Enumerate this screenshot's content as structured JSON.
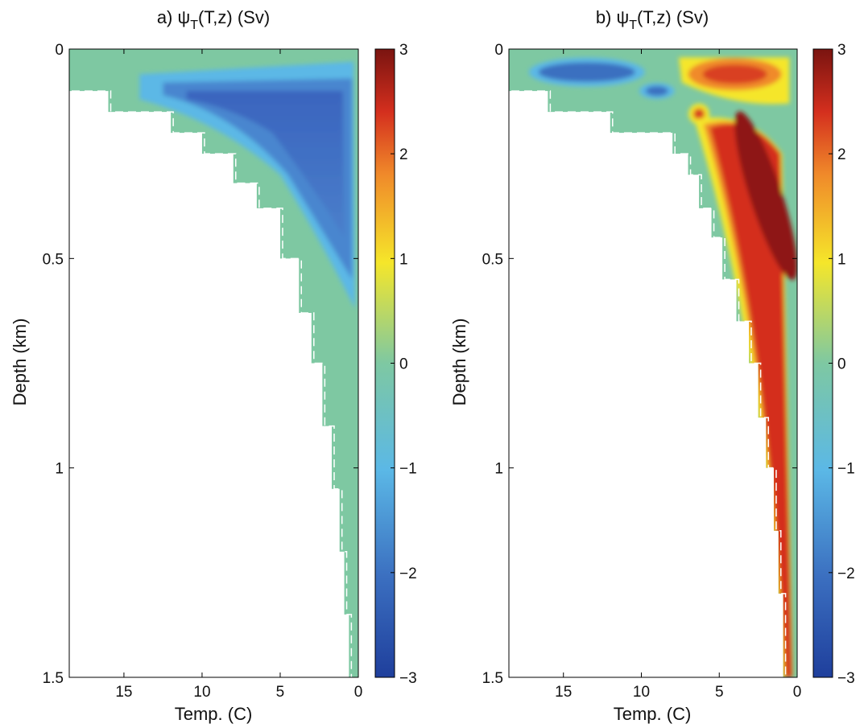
{
  "colors": {
    "background": "#ffffff",
    "frame": "#000000",
    "zero_contour": "#ffffff",
    "colormap": "jet",
    "colormap_stops": [
      "#1f3f9c",
      "#3b6fc0",
      "#5bb8e6",
      "#7ec8a2",
      "#f5e62a",
      "#f08a2a",
      "#d42f1e",
      "#7a1410"
    ]
  },
  "chart_data": [
    {
      "panel": "a",
      "type": "heatmap",
      "subtype": "filled-contour",
      "title_prefix": "a) ",
      "title_sym": "ψ",
      "title_sub": "T",
      "title_rest": "(T,z) (Sv)",
      "xlabel": "Temp. (C)",
      "ylabel": "Depth (km)",
      "x_reversed": true,
      "y_reversed": true,
      "xlim": [
        18.5,
        0
      ],
      "ylim": [
        0,
        1.5
      ],
      "xticks": [
        "15",
        "10",
        "5",
        "0"
      ],
      "xtick_values": [
        15,
        10,
        5,
        0
      ],
      "yticks": [
        "0",
        "0.5",
        "1",
        "1.5"
      ],
      "ytick_values": [
        0,
        0.5,
        1,
        1.5
      ],
      "colorbar": {
        "clim": [
          -3,
          3
        ],
        "ticks": [
          "3",
          "2",
          "1",
          "0",
          "−1",
          "−2",
          "−3"
        ],
        "tick_values": [
          3,
          2,
          1,
          0,
          -1,
          -2,
          -3
        ]
      },
      "boundary": [
        [
          18.5,
          0.1
        ],
        [
          16,
          0.1
        ],
        [
          16,
          0.15
        ],
        [
          12,
          0.15
        ],
        [
          12,
          0.2
        ],
        [
          10,
          0.2
        ],
        [
          10,
          0.25
        ],
        [
          8,
          0.25
        ],
        [
          8,
          0.32
        ],
        [
          6.5,
          0.32
        ],
        [
          6.5,
          0.38
        ],
        [
          5,
          0.38
        ],
        [
          5,
          0.5
        ],
        [
          3.8,
          0.5
        ],
        [
          3.8,
          0.63
        ],
        [
          3,
          0.63
        ],
        [
          3,
          0.75
        ],
        [
          2.3,
          0.75
        ],
        [
          2.3,
          0.9
        ],
        [
          1.7,
          0.9
        ],
        [
          1.7,
          1.05
        ],
        [
          1.2,
          1.05
        ],
        [
          1.2,
          1.2
        ],
        [
          0.9,
          1.2
        ],
        [
          0.9,
          1.35
        ],
        [
          0.6,
          1.35
        ],
        [
          0.6,
          1.5
        ]
      ],
      "features": [
        {
          "kind": "minimum",
          "x": 3.5,
          "y": 0.25,
          "value": -2.3,
          "x_extent": [
            12.5,
            0.2
          ],
          "y_extent": [
            0.08,
            0.58
          ]
        }
      ]
    },
    {
      "panel": "b",
      "type": "heatmap",
      "subtype": "filled-contour",
      "title_prefix": "b) ",
      "title_sym": "ψ",
      "title_sub": "T",
      "title_rest": "(T,z) (Sv)",
      "xlabel": "Temp. (C)",
      "ylabel": "Depth (km)",
      "x_reversed": true,
      "y_reversed": true,
      "xlim": [
        18.5,
        0
      ],
      "ylim": [
        0,
        1.5
      ],
      "xticks": [
        "15",
        "10",
        "5",
        "0"
      ],
      "xtick_values": [
        15,
        10,
        5,
        0
      ],
      "yticks": [
        "0",
        "0.5",
        "1",
        "1.5"
      ],
      "ytick_values": [
        0,
        0.5,
        1,
        1.5
      ],
      "colorbar": {
        "clim": [
          -3,
          3
        ],
        "ticks": [
          "3",
          "2",
          "1",
          "0",
          "−1",
          "−2",
          "−3"
        ],
        "tick_values": [
          3,
          2,
          1,
          0,
          -1,
          -2,
          -3
        ]
      },
      "boundary": [
        [
          18.5,
          0.1
        ],
        [
          16,
          0.1
        ],
        [
          16,
          0.15
        ],
        [
          12,
          0.15
        ],
        [
          12,
          0.2
        ],
        [
          8,
          0.2
        ],
        [
          8,
          0.25
        ],
        [
          7,
          0.25
        ],
        [
          7,
          0.3
        ],
        [
          6.3,
          0.3
        ],
        [
          6.3,
          0.38
        ],
        [
          5.5,
          0.38
        ],
        [
          5.5,
          0.45
        ],
        [
          4.8,
          0.45
        ],
        [
          4.8,
          0.55
        ],
        [
          3.9,
          0.55
        ],
        [
          3.9,
          0.65
        ],
        [
          3.1,
          0.65
        ],
        [
          3.1,
          0.75
        ],
        [
          2.5,
          0.75
        ],
        [
          2.5,
          0.88
        ],
        [
          2,
          0.88
        ],
        [
          2,
          1.0
        ],
        [
          1.5,
          1.0
        ],
        [
          1.5,
          1.15
        ],
        [
          1.2,
          1.15
        ],
        [
          1.2,
          1.3
        ],
        [
          0.9,
          1.3
        ],
        [
          0.9,
          1.5
        ]
      ],
      "features": [
        {
          "kind": "minimum",
          "x": 13.5,
          "y": 0.055,
          "value": -2.3
        },
        {
          "kind": "minimum",
          "x": 9,
          "y": 0.1,
          "value": -2.0
        },
        {
          "kind": "maximum",
          "x": 4,
          "y": 0.06,
          "value": 2.3
        },
        {
          "kind": "maximum",
          "x": 6.3,
          "y": 0.155,
          "value": 2.0
        },
        {
          "kind": "maximum",
          "x": 2,
          "y": 0.35,
          "value": 2.8
        }
      ]
    }
  ]
}
